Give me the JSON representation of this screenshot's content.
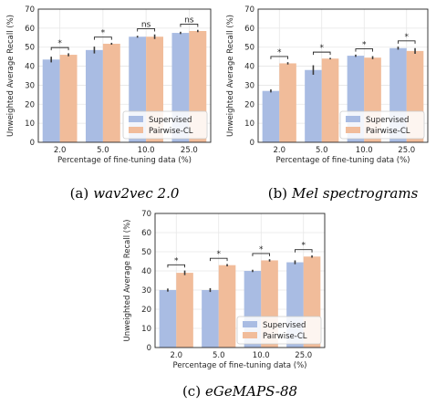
{
  "colors": {
    "supervised": "#a9bce3",
    "pairwise": "#f1bc9a",
    "grid": "#e6e6e6",
    "axis": "#262626"
  },
  "chart_data": [
    {
      "type": "bar",
      "caption_prefix": "(a)",
      "caption_name": "wav2vec 2.0",
      "xlabel": "Percentage of fine-tuning data (%)",
      "ylabel": "Unweighted Average Recall (%)",
      "ylim": [
        0,
        70
      ],
      "yticks": [
        "0",
        "10",
        "20",
        "30",
        "40",
        "50",
        "60",
        "70"
      ],
      "categories": [
        "2.0",
        "5.0",
        "10.0",
        "25.0"
      ],
      "series": [
        {
          "name": "Supervised",
          "values": [
            43.5,
            48.5,
            55.5,
            57.5
          ],
          "errors": [
            1.5,
            1.8,
            0.5,
            0.6
          ]
        },
        {
          "name": "Pairwise-CL",
          "values": [
            46,
            51.8,
            55.5,
            58.5
          ],
          "errors": [
            0.8,
            0.5,
            1.2,
            0.6
          ]
        }
      ],
      "significance": [
        "*",
        "*",
        "ns",
        "ns"
      ],
      "legend_position": "lower-right",
      "grid": true
    },
    {
      "type": "bar",
      "caption_prefix": "(b)",
      "caption_name": "Mel spectrograms",
      "xlabel": "Percentage of fine-tuning data (%)",
      "ylabel": "Unweighted Average Recall (%)",
      "ylim": [
        0,
        70
      ],
      "yticks": [
        "0",
        "10",
        "20",
        "30",
        "40",
        "50",
        "60",
        "70"
      ],
      "categories": [
        "2.0",
        "5.0",
        "10.0",
        "25.0"
      ],
      "series": [
        {
          "name": "Supervised",
          "values": [
            27,
            38,
            45.5,
            49.5
          ],
          "errors": [
            0.8,
            2.5,
            0.6,
            0.8
          ]
        },
        {
          "name": "Pairwise-CL",
          "values": [
            41.5,
            44,
            44.5,
            48
          ],
          "errors": [
            0.6,
            0.4,
            0.8,
            1.5
          ]
        }
      ],
      "significance": [
        "*",
        "*",
        "*",
        "*"
      ],
      "legend_position": "lower-right",
      "grid": true
    },
    {
      "type": "bar",
      "caption_prefix": "(c)",
      "caption_name": "eGeMAPS-88",
      "xlabel": "Percentage of fine-tuning data (%)",
      "ylabel": "Unweighted Average Recall (%)",
      "ylim": [
        0,
        70
      ],
      "yticks": [
        "0",
        "10",
        "20",
        "30",
        "40",
        "50",
        "60",
        "70"
      ],
      "categories": [
        "2.0",
        "5.0",
        "10.0",
        "25.0"
      ],
      "series": [
        {
          "name": "Supervised",
          "values": [
            30,
            30,
            40,
            44.5
          ],
          "errors": [
            0.8,
            1.0,
            0.6,
            1.0
          ]
        },
        {
          "name": "Pairwise-CL",
          "values": [
            39,
            43,
            45.5,
            47.5
          ],
          "errors": [
            1.2,
            0.6,
            0.6,
            0.6
          ]
        }
      ],
      "significance": [
        "*",
        "*",
        "*",
        "*"
      ],
      "legend_position": "lower-right",
      "grid": true
    }
  ]
}
